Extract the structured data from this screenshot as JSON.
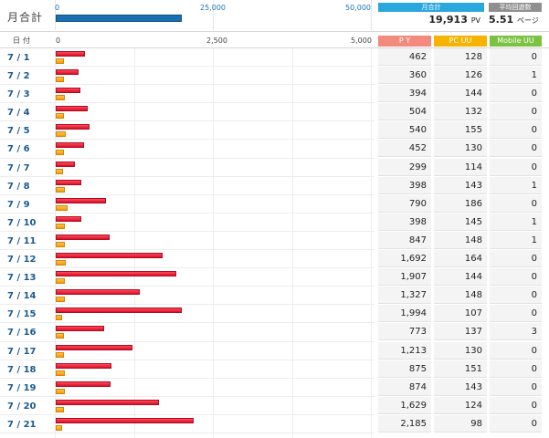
{
  "summary": {
    "label": "月合計",
    "axis_ticks": [
      "0",
      "25,000",
      "50,000"
    ],
    "axis_max": 50000,
    "monthly_pv_value": 19913,
    "monthly_box": {
      "label": "月合計",
      "value": "19,913",
      "unit": "PV",
      "color": "#2aa7dd"
    },
    "avg_box": {
      "label": "平均回遊数",
      "value": "5.51",
      "unit": "ページ",
      "color": "#8f8f8f"
    }
  },
  "table_header": {
    "date_label": "日付",
    "axis_ticks": [
      "0",
      "2,500",
      "5,000"
    ],
    "axis_max": 5000,
    "columns": [
      {
        "label": "P Y",
        "color": "#f28a7e"
      },
      {
        "label": "PC UU",
        "color": "#f6b400"
      },
      {
        "label": "Mobile UU",
        "color": "#7cc242"
      }
    ]
  },
  "colors": {
    "pv_bar": "#e3192e",
    "uu_bar": "#f5a623",
    "month_bar": "#1a6fb0"
  },
  "rows": [
    {
      "date": "7 / 1",
      "pv": "462",
      "pv_value": 462,
      "pc_uu": "128",
      "pc_uu_value": 128,
      "mobile_uu": "0"
    },
    {
      "date": "7 / 2",
      "pv": "360",
      "pv_value": 360,
      "pc_uu": "126",
      "pc_uu_value": 126,
      "mobile_uu": "1"
    },
    {
      "date": "7 / 3",
      "pv": "394",
      "pv_value": 394,
      "pc_uu": "144",
      "pc_uu_value": 144,
      "mobile_uu": "0"
    },
    {
      "date": "7 / 4",
      "pv": "504",
      "pv_value": 504,
      "pc_uu": "132",
      "pc_uu_value": 132,
      "mobile_uu": "0"
    },
    {
      "date": "7 / 5",
      "pv": "540",
      "pv_value": 540,
      "pc_uu": "155",
      "pc_uu_value": 155,
      "mobile_uu": "0"
    },
    {
      "date": "7 / 6",
      "pv": "452",
      "pv_value": 452,
      "pc_uu": "130",
      "pc_uu_value": 130,
      "mobile_uu": "0"
    },
    {
      "date": "7 / 7",
      "pv": "299",
      "pv_value": 299,
      "pc_uu": "114",
      "pc_uu_value": 114,
      "mobile_uu": "0"
    },
    {
      "date": "7 / 8",
      "pv": "398",
      "pv_value": 398,
      "pc_uu": "143",
      "pc_uu_value": 143,
      "mobile_uu": "1"
    },
    {
      "date": "7 / 9",
      "pv": "790",
      "pv_value": 790,
      "pc_uu": "186",
      "pc_uu_value": 186,
      "mobile_uu": "0"
    },
    {
      "date": "7 / 10",
      "pv": "398",
      "pv_value": 398,
      "pc_uu": "145",
      "pc_uu_value": 145,
      "mobile_uu": "1"
    },
    {
      "date": "7 / 11",
      "pv": "847",
      "pv_value": 847,
      "pc_uu": "148",
      "pc_uu_value": 148,
      "mobile_uu": "1"
    },
    {
      "date": "7 / 12",
      "pv": "1,692",
      "pv_value": 1692,
      "pc_uu": "164",
      "pc_uu_value": 164,
      "mobile_uu": "0"
    },
    {
      "date": "7 / 13",
      "pv": "1,907",
      "pv_value": 1907,
      "pc_uu": "144",
      "pc_uu_value": 144,
      "mobile_uu": "0"
    },
    {
      "date": "7 / 14",
      "pv": "1,327",
      "pv_value": 1327,
      "pc_uu": "148",
      "pc_uu_value": 148,
      "mobile_uu": "0"
    },
    {
      "date": "7 / 15",
      "pv": "1,994",
      "pv_value": 1994,
      "pc_uu": "107",
      "pc_uu_value": 107,
      "mobile_uu": "0"
    },
    {
      "date": "7 / 16",
      "pv": "773",
      "pv_value": 773,
      "pc_uu": "137",
      "pc_uu_value": 137,
      "mobile_uu": "3"
    },
    {
      "date": "7 / 17",
      "pv": "1,213",
      "pv_value": 1213,
      "pc_uu": "130",
      "pc_uu_value": 130,
      "mobile_uu": "0"
    },
    {
      "date": "7 / 18",
      "pv": "875",
      "pv_value": 875,
      "pc_uu": "151",
      "pc_uu_value": 151,
      "mobile_uu": "0"
    },
    {
      "date": "7 / 19",
      "pv": "874",
      "pv_value": 874,
      "pc_uu": "143",
      "pc_uu_value": 143,
      "mobile_uu": "0"
    },
    {
      "date": "7 / 20",
      "pv": "1,629",
      "pv_value": 1629,
      "pc_uu": "124",
      "pc_uu_value": 124,
      "mobile_uu": "0"
    },
    {
      "date": "7 / 21",
      "pv": "2,185",
      "pv_value": 2185,
      "pc_uu": "98",
      "pc_uu_value": 98,
      "mobile_uu": "0"
    }
  ]
}
